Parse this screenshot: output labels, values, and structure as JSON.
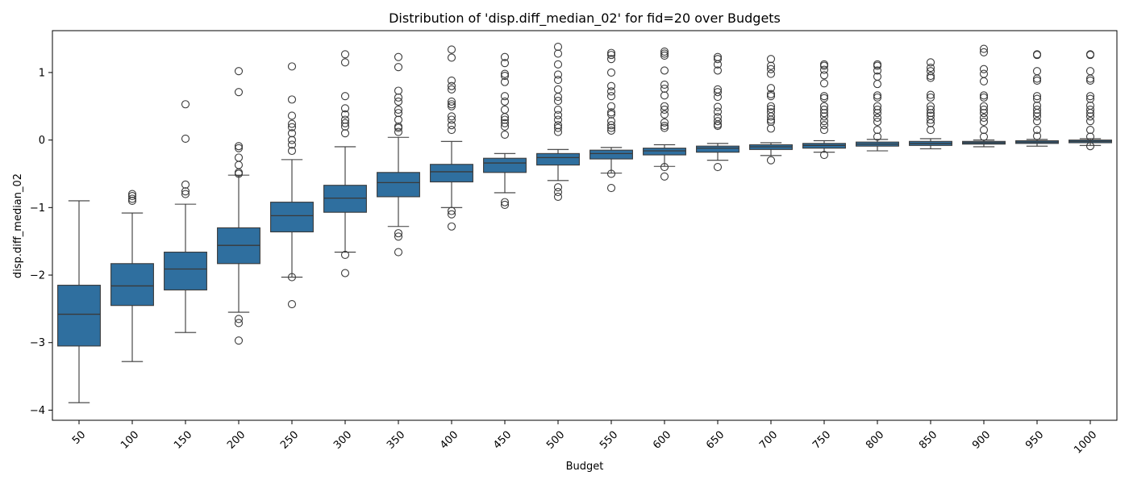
{
  "chart_data": {
    "type": "box",
    "title": "Distribution of 'disp.diff_median_02' for fid=20 over Budgets",
    "xlabel": "Budget",
    "ylabel": "disp.diff_median_02",
    "ylim": [
      -4.15,
      1.62
    ],
    "yticks": [
      -4,
      -3,
      -2,
      -1,
      0,
      1
    ],
    "grid": false,
    "color": "#2f6f9f",
    "categories": [
      "50",
      "100",
      "150",
      "200",
      "250",
      "300",
      "350",
      "400",
      "450",
      "500",
      "550",
      "600",
      "650",
      "700",
      "750",
      "800",
      "850",
      "900",
      "950",
      "1000"
    ],
    "boxes": [
      {
        "q1": -3.05,
        "median": -2.58,
        "q3": -2.15,
        "whisker_low": -3.89,
        "whisker_high": -0.9,
        "outliers": []
      },
      {
        "q1": -2.45,
        "median": -2.16,
        "q3": -1.83,
        "whisker_low": -3.28,
        "whisker_high": -1.08,
        "outliers": [
          -0.8,
          -0.83,
          -0.87,
          -0.9
        ]
      },
      {
        "q1": -2.22,
        "median": -1.91,
        "q3": -1.66,
        "whisker_low": -2.85,
        "whisker_high": -0.95,
        "outliers": [
          0.53,
          0.02,
          -0.66,
          -0.76,
          -0.8
        ]
      },
      {
        "q1": -1.83,
        "median": -1.56,
        "q3": -1.3,
        "whisker_low": -2.55,
        "whisker_high": -0.52,
        "outliers": [
          1.02,
          0.71,
          -0.09,
          -0.12,
          -0.26,
          -0.37,
          -0.48,
          -0.5,
          -2.65,
          -2.71,
          -2.97
        ]
      },
      {
        "q1": -1.36,
        "median": -1.12,
        "q3": -0.92,
        "whisker_low": -2.03,
        "whisker_high": -0.29,
        "outliers": [
          1.09,
          0.6,
          0.36,
          0.24,
          0.19,
          0.1,
          0.0,
          -0.07,
          -0.16,
          -2.03,
          -2.43
        ]
      },
      {
        "q1": -1.07,
        "median": -0.86,
        "q3": -0.67,
        "whisker_low": -1.66,
        "whisker_high": -0.1,
        "outliers": [
          1.27,
          1.15,
          0.65,
          0.47,
          0.38,
          0.3,
          0.25,
          0.2,
          0.1,
          -1.7,
          -1.97
        ]
      },
      {
        "q1": -0.84,
        "median": -0.63,
        "q3": -0.48,
        "whisker_low": -1.28,
        "whisker_high": 0.04,
        "outliers": [
          1.23,
          1.08,
          0.73,
          0.63,
          0.57,
          0.45,
          0.4,
          0.3,
          0.2,
          0.18,
          0.12,
          -1.38,
          -1.43,
          -1.66
        ]
      },
      {
        "q1": -0.62,
        "median": -0.47,
        "q3": -0.36,
        "whisker_low": -1.0,
        "whisker_high": -0.02,
        "outliers": [
          1.34,
          1.22,
          0.88,
          0.8,
          0.75,
          0.57,
          0.53,
          0.5,
          0.35,
          0.3,
          0.22,
          0.15,
          -1.05,
          -1.1,
          -1.28
        ]
      },
      {
        "q1": -0.48,
        "median": -0.34,
        "q3": -0.27,
        "whisker_low": -0.78,
        "whisker_high": -0.2,
        "outliers": [
          1.23,
          1.14,
          0.98,
          0.95,
          0.86,
          0.65,
          0.57,
          0.45,
          0.34,
          0.3,
          0.25,
          0.2,
          0.08,
          -0.92,
          -0.96
        ]
      },
      {
        "q1": -0.37,
        "median": -0.26,
        "q3": -0.2,
        "whisker_low": -0.6,
        "whisker_high": -0.14,
        "outliers": [
          1.38,
          1.28,
          1.12,
          0.97,
          0.89,
          0.75,
          0.64,
          0.58,
          0.45,
          0.37,
          0.3,
          0.22,
          0.18,
          0.12,
          -0.7,
          -0.77,
          -0.84
        ]
      },
      {
        "q1": -0.28,
        "median": -0.2,
        "q3": -0.15,
        "whisker_low": -0.49,
        "whisker_high": -0.11,
        "outliers": [
          1.29,
          1.26,
          1.2,
          1.0,
          0.8,
          0.72,
          0.65,
          0.5,
          0.41,
          0.38,
          0.28,
          0.22,
          0.18,
          0.14,
          -0.5,
          -0.71
        ]
      },
      {
        "q1": -0.22,
        "median": -0.16,
        "q3": -0.12,
        "whisker_low": -0.39,
        "whisker_high": -0.07,
        "outliers": [
          1.31,
          1.28,
          1.25,
          1.03,
          0.82,
          0.76,
          0.66,
          0.5,
          0.45,
          0.38,
          0.26,
          0.21,
          0.18,
          -0.4,
          -0.54
        ]
      },
      {
        "q1": -0.18,
        "median": -0.12,
        "q3": -0.09,
        "whisker_low": -0.3,
        "whisker_high": -0.05,
        "outliers": [
          1.23,
          1.2,
          1.12,
          1.03,
          0.75,
          0.71,
          0.64,
          0.49,
          0.42,
          0.34,
          0.28,
          0.23,
          0.21,
          -0.4
        ]
      },
      {
        "q1": -0.14,
        "median": -0.1,
        "q3": -0.07,
        "whisker_low": -0.23,
        "whisker_high": -0.04,
        "outliers": [
          1.2,
          1.1,
          1.05,
          0.98,
          0.77,
          0.68,
          0.65,
          0.5,
          0.46,
          0.41,
          0.35,
          0.3,
          0.27,
          0.17,
          -0.3
        ]
      },
      {
        "q1": -0.12,
        "median": -0.08,
        "q3": -0.05,
        "whisker_low": -0.18,
        "whisker_high": -0.01,
        "outliers": [
          1.12,
          1.1,
          1.04,
          0.96,
          0.84,
          0.65,
          0.62,
          0.5,
          0.45,
          0.4,
          0.35,
          0.28,
          0.22,
          0.15,
          -0.22
        ]
      },
      {
        "q1": -0.09,
        "median": -0.06,
        "q3": -0.03,
        "whisker_low": -0.16,
        "whisker_high": 0.01,
        "outliers": [
          1.12,
          1.1,
          1.03,
          0.94,
          0.83,
          0.66,
          0.63,
          0.5,
          0.45,
          0.4,
          0.33,
          0.27,
          0.15,
          0.05
        ]
      },
      {
        "q1": -0.08,
        "median": -0.05,
        "q3": -0.02,
        "whisker_low": -0.13,
        "whisker_high": 0.02,
        "outliers": [
          1.15,
          1.07,
          1.02,
          0.95,
          0.92,
          0.67,
          0.63,
          0.5,
          0.45,
          0.4,
          0.36,
          0.3,
          0.25,
          0.15
        ]
      },
      {
        "q1": -0.06,
        "median": -0.04,
        "q3": -0.02,
        "whisker_low": -0.1,
        "whisker_high": 0.0,
        "outliers": [
          1.35,
          1.3,
          1.05,
          0.98,
          0.87,
          0.66,
          0.63,
          0.5,
          0.45,
          0.4,
          0.33,
          0.27,
          0.15,
          0.05
        ]
      },
      {
        "q1": -0.05,
        "median": -0.03,
        "q3": -0.01,
        "whisker_low": -0.09,
        "whisker_high": 0.01,
        "outliers": [
          1.27,
          1.26,
          1.02,
          0.91,
          0.88,
          0.65,
          0.61,
          0.51,
          0.45,
          0.4,
          0.35,
          0.28,
          0.15,
          0.06
        ]
      },
      {
        "q1": -0.04,
        "median": -0.02,
        "q3": 0.0,
        "whisker_low": -0.08,
        "whisker_high": 0.02,
        "outliers": [
          1.27,
          1.26,
          1.02,
          0.91,
          0.88,
          0.65,
          0.61,
          0.51,
          0.45,
          0.4,
          0.35,
          0.28,
          0.15,
          0.05,
          -0.09
        ]
      }
    ]
  }
}
